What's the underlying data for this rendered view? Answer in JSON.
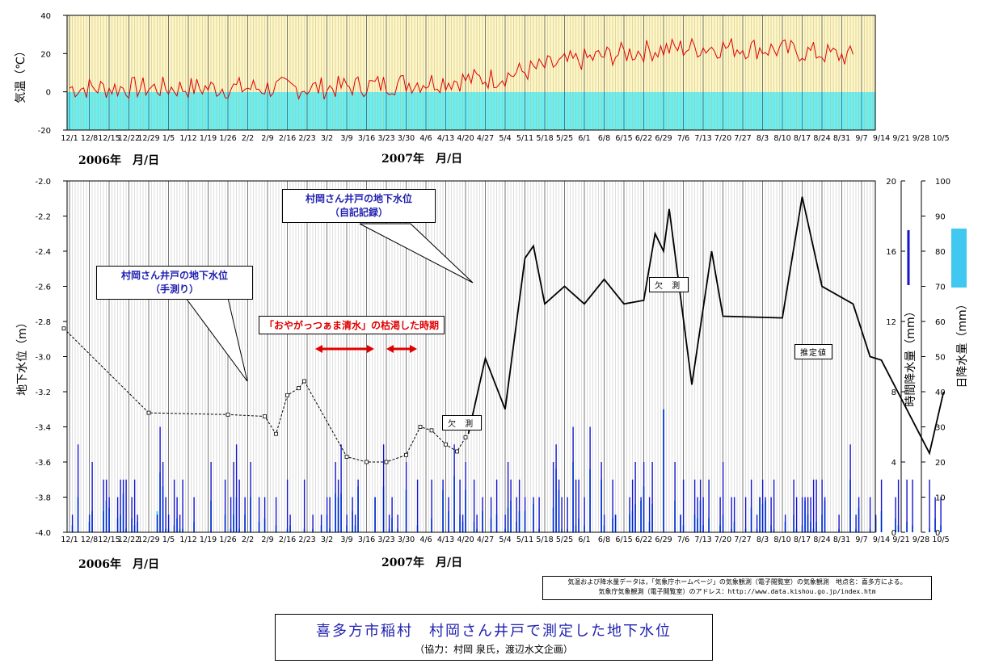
{
  "chart_data": [
    {
      "type": "line",
      "ylabel": "気温（℃）",
      "ylim": [
        -20,
        40
      ],
      "yticks": [
        "40",
        "20",
        "0",
        "-20"
      ],
      "series": [],
      "colors": {
        "line": "#e00000",
        "above_zero_bg": "#fdf6c8",
        "below_zero_bg": "#66f0f8"
      }
    },
    {
      "type": "line",
      "ylabel": "地下水位（m）",
      "ylim": [
        -4.0,
        -2.0
      ],
      "yticks": [
        "-2.0",
        "-2.2",
        "-2.4",
        "-2.6",
        "-2.8",
        "-3.0",
        "-3.2",
        "-3.4",
        "-3.6",
        "-3.8",
        "-4.0"
      ],
      "right_axis_1": {
        "label": "時間降水量（mm）",
        "ylim": [
          0,
          20
        ],
        "ticks": [
          "20",
          "16",
          "12",
          "8",
          "4",
          "0"
        ]
      },
      "right_axis_2": {
        "label": "日降水量（mm）",
        "ylim": [
          0,
          100
        ],
        "ticks": [
          "100",
          "90",
          "80",
          "70",
          "60",
          "50",
          "40",
          "30",
          "20",
          "10",
          "0"
        ]
      },
      "series": [
        {
          "x": [
            "11/29",
            "12/29",
            "1/26",
            "2/8",
            "2/12",
            "2/16",
            "2/20",
            "2/22",
            "3/9",
            "3/16",
            "3/23",
            "3/30",
            "4/4",
            "4/8",
            "4/13",
            "4/17",
            "4/20"
          ],
          "values": [
            -2.84,
            -3.32,
            -3.33,
            -3.34,
            -3.44,
            -3.22,
            -3.18,
            -3.14,
            -3.57,
            -3.6,
            -3.6,
            -3.56,
            -3.4,
            -3.42,
            -3.5,
            -3.54,
            -3.46
          ]
        },
        {
          "x": [
            "4/21",
            "4/27",
            "5/4",
            "5/11",
            "5/14",
            "5/18",
            "5/25",
            "6/1",
            "6/8",
            "6/15",
            "6/22",
            "6/26",
            "6/29",
            "7/1",
            "7/9",
            "7/16",
            "7/20",
            "8/10",
            "8/17",
            "8/24",
            "9/4",
            "9/10",
            "9/14",
            "10/1",
            "10/6"
          ],
          "values": [
            -3.44,
            -3.01,
            -3.3,
            -2.44,
            -2.37,
            -2.7,
            -2.6,
            -2.7,
            -2.56,
            -2.7,
            -2.68,
            -2.3,
            -2.4,
            -2.16,
            -3.16,
            -2.4,
            -2.77,
            -2.78,
            -2.09,
            -2.6,
            -2.7,
            -3.0,
            -3.02,
            -3.55,
            -3.2
          ]
        }
      ],
      "colors": {
        "manual": "#000000",
        "auto": "#000000",
        "hourly": "#1414cc",
        "daily": "#40c8f0"
      }
    }
  ],
  "axes": {
    "x_ticks": [
      "12/1",
      "12/8",
      "12/15",
      "12/22",
      "12/29",
      "1/5",
      "1/12",
      "1/19",
      "1/26",
      "2/2",
      "2/9",
      "2/16",
      "2/23",
      "3/2",
      "3/9",
      "3/16",
      "3/23",
      "3/30",
      "4/6",
      "4/13",
      "4/20",
      "4/27",
      "5/4",
      "5/11",
      "5/18",
      "5/25",
      "6/1",
      "6/8",
      "6/15",
      "6/22",
      "6/29",
      "7/6",
      "7/13",
      "7/20",
      "7/27",
      "8/3",
      "8/10",
      "8/17",
      "8/24",
      "8/31",
      "9/7",
      "9/14",
      "9/21",
      "9/28",
      "10/5"
    ],
    "year_2006": "2006年　月/日",
    "year_2007": "2007年　月/日"
  },
  "annotations": {
    "manual_well": {
      "line1": "村岡さん井戸の地下水位",
      "line2": "（手測り）"
    },
    "auto_well": {
      "line1": "村岡さん井戸の地下水位",
      "line2": "（自記記録）"
    },
    "dry_period": "「おやがっつぁま清水」の枯渇した時期",
    "missing_1": "欠 測",
    "missing_2": "欠 測",
    "estimate": "推定値"
  },
  "credit": {
    "line1": "気温および降水量データは，「気象庁ホームページ」の気象観測（電子閲覧室）の気象観測　地点名：喜多方による。",
    "line2": "気象庁気象観測（電子閲覧室）のアドレス：http://www.data.kishou.go.jp/index.htm"
  },
  "title": {
    "main": "喜多方市稲村　村岡さん井戸で測定した地下水位",
    "sub": "（協力：村岡 泉氏，渡辺水文企画）"
  }
}
